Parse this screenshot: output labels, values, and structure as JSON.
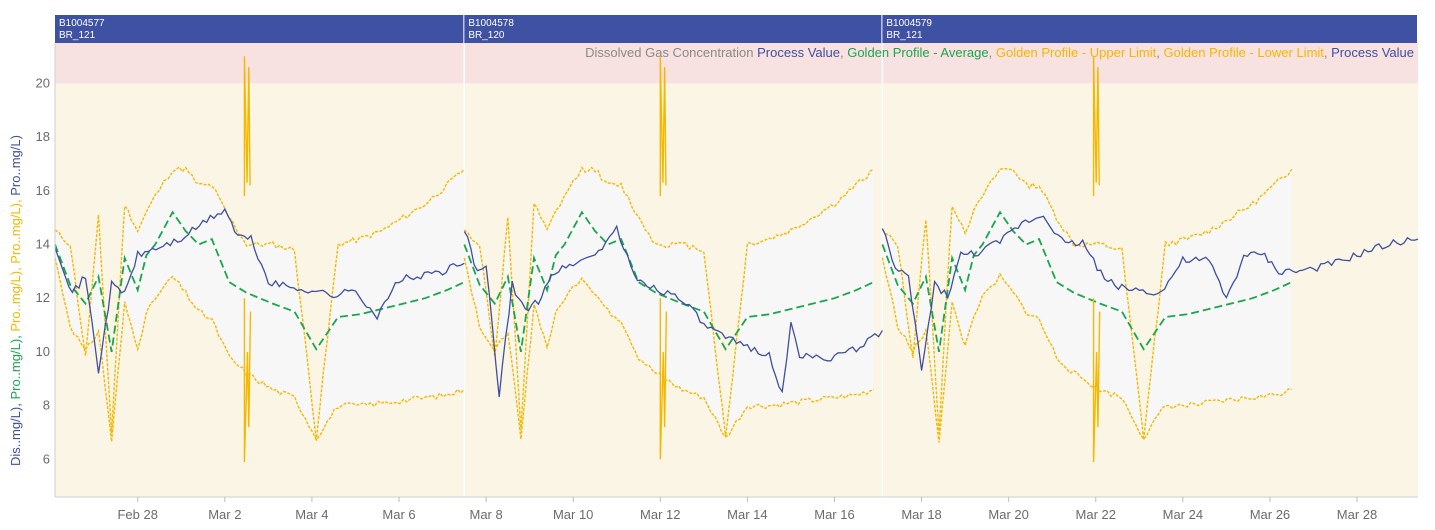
{
  "colors": {
    "process": "#3f4fa0",
    "average": "#1aa64c",
    "limit": "#f5b800",
    "band_fill": "#f7f7f7",
    "plot_bg": "#fbf5e6",
    "alarm_bg": "#f8e1e1",
    "batch_bar": "#3f51a3",
    "grey_text": "#8a8a8a"
  },
  "chart_data": {
    "type": "line",
    "title_parts": [
      {
        "text": "Dissolved Gas Concentration ",
        "color": "#8a8a8a"
      },
      {
        "text": "Process Value",
        "color": "#3f4fa0"
      },
      {
        "text": ", ",
        "color": "#8a8a8a"
      },
      {
        "text": "Golden Profile - Average",
        "color": "#1aa64c"
      },
      {
        "text": ", ",
        "color": "#8a8a8a"
      },
      {
        "text": "Golden Profile - Upper Limit",
        "color": "#f5b800"
      },
      {
        "text": ", ",
        "color": "#8a8a8a"
      },
      {
        "text": "Golden Profile - Lower Limit",
        "color": "#f5b800"
      },
      {
        "text": ", ",
        "color": "#8a8a8a"
      },
      {
        "text": "Process Value",
        "color": "#3f4fa0"
      }
    ],
    "ylabel_parts": [
      {
        "text": "Dis..mg/L), ",
        "color": "#3f4fa0"
      },
      {
        "text": "Pro..mg/L), ",
        "color": "#1aa64c"
      },
      {
        "text": "Pro..mg/L), ",
        "color": "#f5b800"
      },
      {
        "text": "Pro..mg/L), ",
        "color": "#f5b800"
      },
      {
        "text": "Pro..mg/L)",
        "color": "#3f4fa0"
      }
    ],
    "xlim_days": [
      -2.9,
      28.4
    ],
    "ylim": [
      4.6,
      21.5
    ],
    "y_ticks": [
      6,
      8,
      10,
      12,
      14,
      16,
      18,
      20
    ],
    "alarm_threshold": 20,
    "x_ticks": [
      {
        "label": "Feb 28",
        "day": -1
      },
      {
        "label": "Mar 2",
        "day": 1
      },
      {
        "label": "Mar 4",
        "day": 3
      },
      {
        "label": "Mar 6",
        "day": 5
      },
      {
        "label": "Mar 8",
        "day": 7
      },
      {
        "label": "Mar 10",
        "day": 9
      },
      {
        "label": "Mar 12",
        "day": 11
      },
      {
        "label": "Mar 14",
        "day": 13
      },
      {
        "label": "Mar 16",
        "day": 15
      },
      {
        "label": "Mar 18",
        "day": 17
      },
      {
        "label": "Mar 20",
        "day": 19
      },
      {
        "label": "Mar 22",
        "day": 21
      },
      {
        "label": "Mar 24",
        "day": 23
      },
      {
        "label": "Mar 26",
        "day": 25
      },
      {
        "label": "Mar 28",
        "day": 27
      }
    ],
    "batches": [
      {
        "id": "B1004577",
        "name": "BR_121",
        "start_day": -2.9,
        "end_day": 6.5
      },
      {
        "id": "B1004578",
        "name": "BR_120",
        "start_day": 6.5,
        "end_day": 16.1
      },
      {
        "id": "B1004579",
        "name": "BR_121",
        "start_day": 16.1,
        "end_day": 28.4
      }
    ],
    "profile_offsets": [
      0,
      0.35,
      0.7,
      1.0,
      1.3,
      1.6,
      1.9,
      2.1,
      2.3,
      2.5,
      2.7,
      3.0,
      3.3,
      3.6,
      4.0,
      4.4,
      4.7,
      5.0,
      5.5,
      6.0,
      6.5,
      7.0,
      7.5,
      8.0,
      8.5,
      9.0,
      9.4
    ],
    "profile_upper": [
      14.5,
      14.0,
      9.8,
      15.0,
      7.0,
      15.5,
      14.5,
      15.2,
      15.8,
      16.3,
      16.8,
      16.8,
      16.2,
      16.2,
      15.0,
      14.0,
      14.0,
      14.0,
      13.8,
      6.8,
      14.0,
      14.2,
      14.5,
      15.0,
      15.5,
      16.2,
      16.8
    ],
    "profile_average": [
      14.0,
      12.5,
      11.8,
      12.8,
      10.0,
      13.5,
      12.3,
      13.6,
      14.0,
      14.6,
      15.2,
      14.5,
      14.0,
      14.2,
      12.6,
      12.2,
      12.0,
      11.8,
      11.5,
      10.1,
      11.3,
      11.4,
      11.6,
      11.8,
      12.0,
      12.3,
      12.6
    ],
    "profile_lower": [
      13.5,
      11.0,
      10.0,
      10.8,
      6.7,
      11.8,
      10.2,
      11.4,
      12.0,
      12.4,
      12.8,
      12.2,
      11.5,
      11.2,
      9.8,
      9.2,
      8.9,
      8.6,
      8.3,
      6.8,
      8.0,
      8.0,
      8.1,
      8.2,
      8.3,
      8.4,
      8.6
    ],
    "spikes": [
      {
        "day": 1.45,
        "top": 21.0,
        "bottom": 5.9
      },
      {
        "day": 11.0,
        "top": 21.0,
        "bottom": 6.0
      },
      {
        "day": 20.95,
        "top": 21.0,
        "bottom": 5.9
      }
    ],
    "series": [
      {
        "name": "Process Value",
        "color": "#3f4fa0",
        "style": "solid",
        "segments": [
          {
            "x": [
              -2.9,
              -2.5,
              -2.2,
              -1.9,
              -1.6,
              -1.3,
              -1.0,
              -0.5,
              0.0,
              0.5,
              1.0,
              1.3,
              1.6,
              2.0,
              2.5,
              3.0,
              3.5,
              4.0,
              4.5,
              5.0,
              5.5,
              6.0,
              6.5
            ],
            "y": [
              14.0,
              12.2,
              12.8,
              9.3,
              12.5,
              12.2,
              13.6,
              13.9,
              14.2,
              14.8,
              15.3,
              14.3,
              14.2,
              12.6,
              12.4,
              12.3,
              12.1,
              12.3,
              11.3,
              12.7,
              12.8,
              13.0,
              13.3
            ]
          },
          {
            "x": [
              6.5,
              6.8,
              7.0,
              7.3,
              7.6,
              7.9,
              8.2,
              8.5,
              9.0,
              9.5,
              10.0,
              10.4,
              10.7,
              11.0,
              11.5,
              12.0,
              12.5,
              13.0,
              13.5,
              13.8,
              14.0,
              14.2,
              14.5,
              15.0,
              15.5,
              16.1
            ],
            "y": [
              14.6,
              12.9,
              13.2,
              8.4,
              12.5,
              11.5,
              11.9,
              12.9,
              13.3,
              13.6,
              14.6,
              12.8,
              12.5,
              12.3,
              12.0,
              11.0,
              10.5,
              10.2,
              9.9,
              8.4,
              11.0,
              9.9,
              9.8,
              9.8,
              10.1,
              10.8
            ]
          },
          {
            "x": [
              16.1,
              16.4,
              16.7,
              17.0,
              17.3,
              17.6,
              17.9,
              18.3,
              18.8,
              19.3,
              19.8,
              20.3,
              20.7,
              21.2,
              21.6,
              22.0,
              22.5,
              23.0,
              23.3,
              23.6,
              24.0,
              24.4,
              24.8,
              25.2,
              25.6,
              26.0,
              26.5,
              27.0,
              27.5,
              28.0,
              28.4
            ],
            "y": [
              14.7,
              13.0,
              12.8,
              9.3,
              12.5,
              12.1,
              13.6,
              13.7,
              14.1,
              14.8,
              15.1,
              14.0,
              14.1,
              12.7,
              12.4,
              12.3,
              12.2,
              13.4,
              13.4,
              13.4,
              12.0,
              13.5,
              13.7,
              13.0,
              13.0,
              13.1,
              13.3,
              13.6,
              13.9,
              14.1,
              14.2
            ]
          }
        ]
      },
      {
        "name": "Golden Profile - Average",
        "color": "#1aa64c",
        "style": "dashed"
      },
      {
        "name": "Golden Profile - Upper Limit",
        "color": "#f5b800",
        "style": "dotted"
      },
      {
        "name": "Golden Profile - Lower Limit",
        "color": "#f5b800",
        "style": "dotted"
      }
    ]
  }
}
